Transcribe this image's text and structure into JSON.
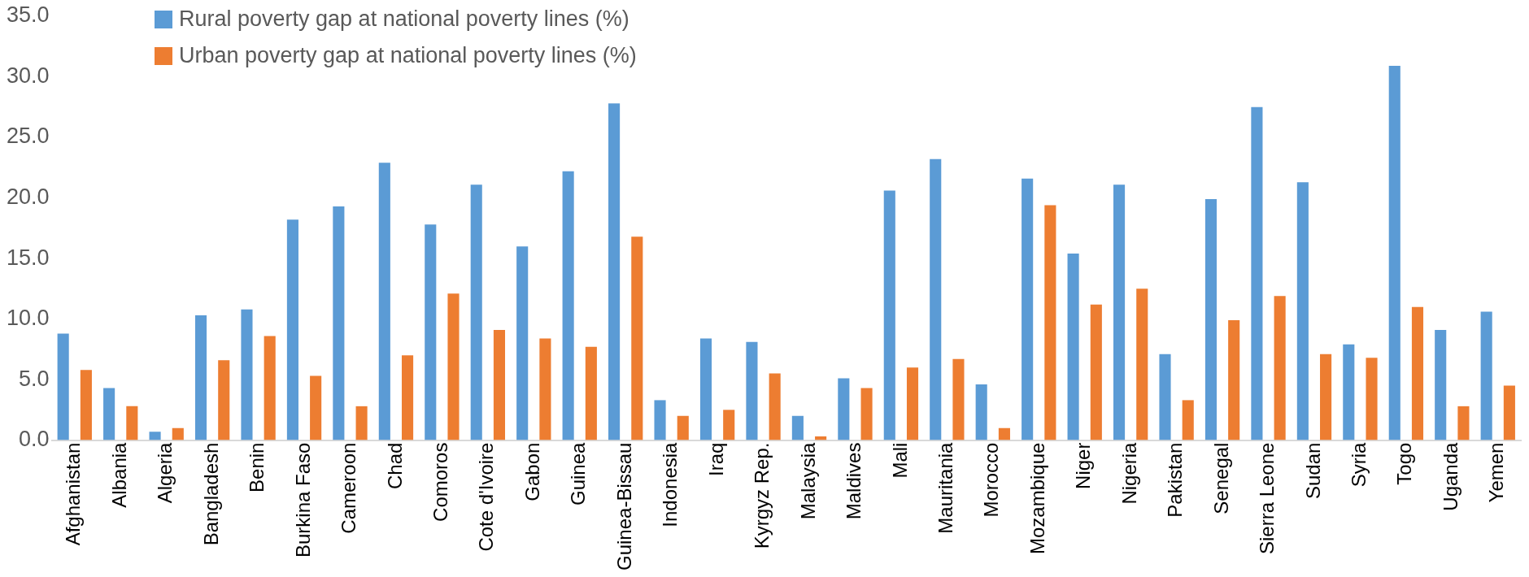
{
  "chart_data": {
    "type": "bar",
    "categories": [
      "Afghanistan",
      "Albania",
      "Algeria",
      "Bangladesh",
      "Benin",
      "Burkina Faso",
      "Cameroon",
      "Chad",
      "Comoros",
      "Cote d'Ivoire",
      "Gabon",
      "Guinea",
      "Guinea-Bissau",
      "Indonesia",
      "Iraq",
      "Kyrgyz Rep.",
      "Malaysia",
      "Maldives",
      "Mali",
      "Mauritania",
      "Morocco",
      "Mozambique",
      "Niger",
      "Nigeria",
      "Pakistan",
      "Senegal",
      "Sierra Leone",
      "Sudan",
      "Syria",
      "Togo",
      "Uganda",
      "Yemen"
    ],
    "series": [
      {
        "name": "Rural poverty gap at national poverty lines (%)",
        "color": "#5b9bd5",
        "values": [
          8.8,
          4.3,
          0.7,
          10.3,
          10.8,
          18.2,
          19.3,
          22.9,
          17.8,
          21.1,
          16.0,
          22.2,
          27.8,
          3.3,
          8.4,
          8.1,
          2.0,
          5.1,
          20.6,
          23.2,
          4.6,
          21.6,
          15.4,
          21.1,
          7.1,
          19.9,
          27.5,
          21.3,
          7.9,
          30.9,
          9.1,
          10.6
        ]
      },
      {
        "name": "Urban poverty gap at national poverty lines (%)",
        "color": "#ed7d31",
        "values": [
          5.8,
          2.8,
          1.0,
          6.6,
          8.6,
          5.3,
          2.8,
          7.0,
          12.1,
          9.1,
          8.4,
          7.7,
          16.8,
          2.0,
          2.5,
          5.5,
          0.3,
          4.3,
          6.0,
          6.7,
          1.0,
          19.4,
          11.2,
          12.5,
          3.3,
          9.9,
          11.9,
          7.1,
          6.8,
          11.0,
          2.8,
          4.5
        ]
      }
    ],
    "ylim": [
      0,
      35
    ],
    "yticks": [
      {
        "value": 0,
        "label": "0.0"
      },
      {
        "value": 5,
        "label": "5.0"
      },
      {
        "value": 10,
        "label": "10.0"
      },
      {
        "value": 15,
        "label": "15.0"
      },
      {
        "value": 20,
        "label": "20.0"
      },
      {
        "value": 25,
        "label": "25.0"
      },
      {
        "value": 30,
        "label": "30.0"
      },
      {
        "value": 35,
        "label": "35.0"
      }
    ],
    "grid": false,
    "legend": "top left"
  }
}
